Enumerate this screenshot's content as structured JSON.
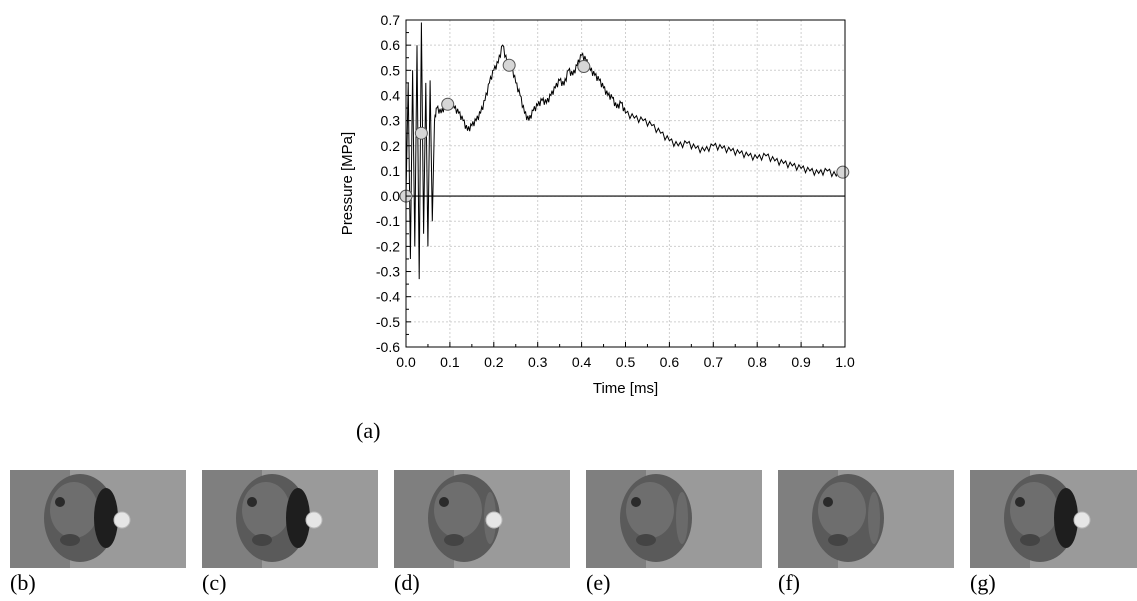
{
  "chart_data": {
    "type": "line",
    "xlabel": "Time [ms]",
    "ylabel": "Pressure [MPa]",
    "xlim": [
      0.0,
      1.0
    ],
    "ylim": [
      -0.6,
      0.7
    ],
    "x_ticks": [
      "0.0",
      "0.1",
      "0.2",
      "0.3",
      "0.4",
      "0.5",
      "0.6",
      "0.7",
      "0.8",
      "0.9",
      "1.0"
    ],
    "y_ticks": [
      "0.7",
      "0.6",
      "0.5",
      "0.4",
      "0.3",
      "0.2",
      "0.1",
      "0.0",
      "-0.1",
      "-0.2",
      "-0.3",
      "-0.4",
      "-0.5",
      "-0.6"
    ],
    "grid": true,
    "reference_line_y": 0.0,
    "series": [
      {
        "x": [
          0.0,
          0.005,
          0.01,
          0.015,
          0.02,
          0.025,
          0.03,
          0.035,
          0.04,
          0.045,
          0.05,
          0.055,
          0.06,
          0.065,
          0.07,
          0.08,
          0.09,
          0.1,
          0.11,
          0.12,
          0.13,
          0.14,
          0.15,
          0.16,
          0.17,
          0.18,
          0.19,
          0.2,
          0.21,
          0.22,
          0.23,
          0.24,
          0.25,
          0.26,
          0.27,
          0.28,
          0.29,
          0.3,
          0.31,
          0.32,
          0.33,
          0.34,
          0.35,
          0.36,
          0.37,
          0.38,
          0.39,
          0.4,
          0.41,
          0.42,
          0.43,
          0.44,
          0.45,
          0.46,
          0.47,
          0.48,
          0.49,
          0.5,
          0.52,
          0.54,
          0.56,
          0.58,
          0.6,
          0.62,
          0.64,
          0.66,
          0.68,
          0.7,
          0.72,
          0.74,
          0.76,
          0.78,
          0.8,
          0.82,
          0.84,
          0.86,
          0.88,
          0.9,
          0.92,
          0.94,
          0.96,
          0.98,
          1.0
        ],
        "y": [
          0.0,
          0.45,
          -0.25,
          0.5,
          -0.2,
          0.6,
          -0.33,
          0.69,
          -0.15,
          0.45,
          -0.2,
          0.46,
          -0.1,
          0.3,
          0.35,
          0.33,
          0.36,
          0.37,
          0.35,
          0.33,
          0.3,
          0.26,
          0.28,
          0.3,
          0.33,
          0.38,
          0.45,
          0.5,
          0.53,
          0.6,
          0.53,
          0.52,
          0.45,
          0.4,
          0.33,
          0.3,
          0.34,
          0.36,
          0.38,
          0.37,
          0.4,
          0.43,
          0.46,
          0.44,
          0.5,
          0.48,
          0.52,
          0.56,
          0.54,
          0.5,
          0.48,
          0.46,
          0.43,
          0.4,
          0.39,
          0.35,
          0.37,
          0.33,
          0.31,
          0.3,
          0.28,
          0.25,
          0.22,
          0.2,
          0.21,
          0.19,
          0.18,
          0.2,
          0.19,
          0.18,
          0.17,
          0.16,
          0.15,
          0.16,
          0.14,
          0.13,
          0.12,
          0.11,
          0.1,
          0.09,
          0.1,
          0.08,
          0.1
        ]
      }
    ],
    "markers": [
      {
        "x": 0.0,
        "y": 0.0
      },
      {
        "x": 0.035,
        "y": 0.25
      },
      {
        "x": 0.095,
        "y": 0.365
      },
      {
        "x": 0.235,
        "y": 0.52
      },
      {
        "x": 0.405,
        "y": 0.515
      },
      {
        "x": 0.995,
        "y": 0.095
      }
    ]
  },
  "labels": {
    "a": "(a)",
    "b": "(b)",
    "c": "(c)",
    "d": "(d)",
    "e": "(e)",
    "f": "(f)",
    "g": "(g)"
  },
  "frames": [
    {
      "name": "b",
      "ball": true,
      "dark_patch": true
    },
    {
      "name": "c",
      "ball": true,
      "dark_patch": true
    },
    {
      "name": "d",
      "ball": true,
      "dark_patch": false
    },
    {
      "name": "e",
      "ball": false,
      "dark_patch": false
    },
    {
      "name": "f",
      "ball": false,
      "dark_patch": false
    },
    {
      "name": "g",
      "ball": true,
      "dark_patch": true
    }
  ]
}
